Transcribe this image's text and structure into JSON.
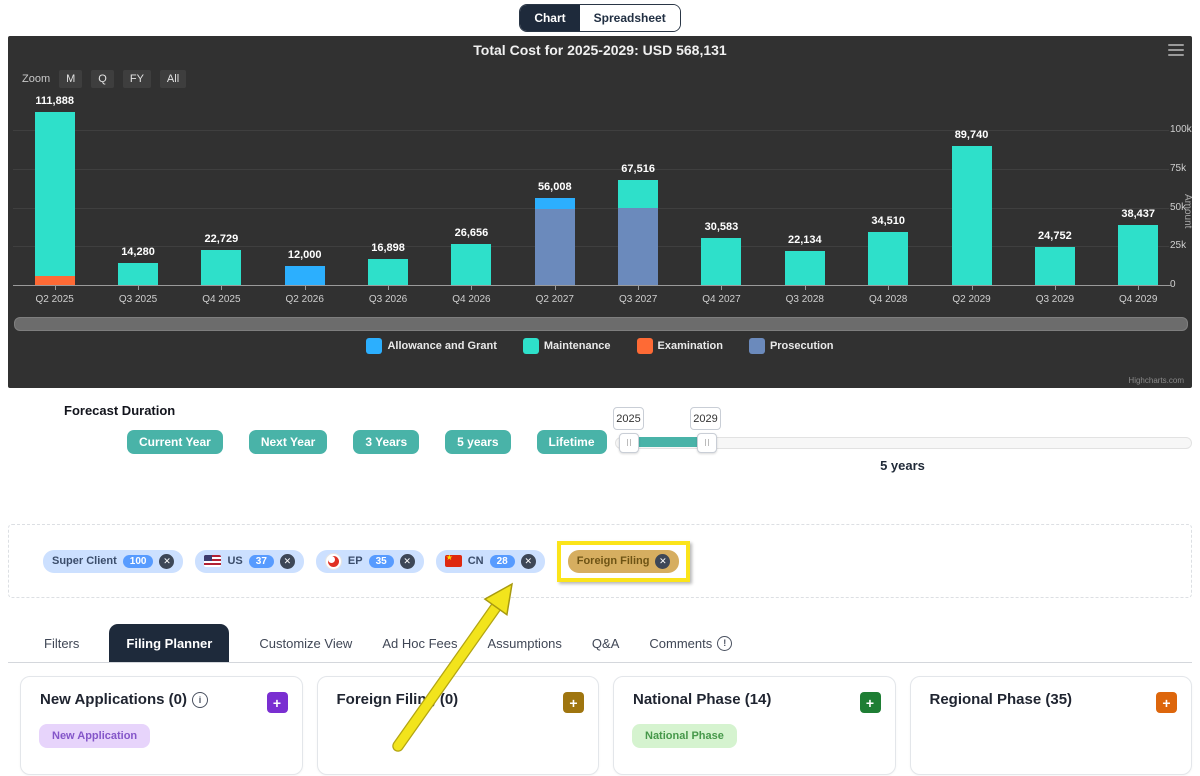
{
  "view_toggle": {
    "options": [
      "Chart",
      "Spreadsheet"
    ],
    "active": "Chart"
  },
  "chart": {
    "title": "Total Cost for 2025-2029: USD 568,131",
    "zoom_label": "Zoom",
    "zoom_buttons": [
      "M",
      "Q",
      "FY",
      "All"
    ],
    "y_axis_title": "Amount",
    "y_ticks": [
      "100k",
      "75k",
      "50k",
      "25k",
      "0"
    ],
    "credit": "Highcharts.com"
  },
  "chart_data": {
    "type": "bar",
    "stacked": true,
    "title": "Total Cost for 2025-2029: USD 568,131",
    "ylabel": "Amount",
    "ylim": [
      0,
      112000
    ],
    "grid": true,
    "legend_position": "bottom",
    "categories": [
      "Q2 2025",
      "Q3 2025",
      "Q4 2025",
      "Q2 2026",
      "Q3 2026",
      "Q4 2026",
      "Q2 2027",
      "Q3 2027",
      "Q4 2027",
      "Q3 2028",
      "Q4 2028",
      "Q2 2029",
      "Q3 2029",
      "Q4 2029"
    ],
    "totals": [
      111888,
      14280,
      22729,
      12000,
      16898,
      26656,
      56008,
      67516,
      30583,
      22134,
      34510,
      89740,
      24752,
      38437
    ],
    "stack_order": [
      "Examination",
      "Prosecution",
      "Maintenance",
      "Allowance and Grant"
    ],
    "series": [
      {
        "name": "Allowance and Grant",
        "color": "#2caffe",
        "values": [
          0,
          0,
          0,
          12000,
          0,
          0,
          7000,
          0,
          0,
          0,
          0,
          0,
          0,
          0
        ]
      },
      {
        "name": "Maintenance",
        "color": "#2ee0ca",
        "values": [
          105888,
          14280,
          22729,
          0,
          16898,
          26656,
          0,
          18000,
          30583,
          22134,
          34510,
          89740,
          24752,
          38437
        ]
      },
      {
        "name": "Examination",
        "color": "#fe6a35",
        "values": [
          6000,
          0,
          0,
          0,
          0,
          0,
          0,
          0,
          0,
          0,
          0,
          0,
          0,
          0
        ]
      },
      {
        "name": "Prosecution",
        "color": "#6b8abc",
        "values": [
          0,
          0,
          0,
          0,
          0,
          0,
          49008,
          49516,
          0,
          0,
          0,
          0,
          0,
          0
        ]
      }
    ]
  },
  "forecast": {
    "heading": "Forecast Duration",
    "buttons": [
      "Current Year",
      "Next Year",
      "3 Years",
      "5 years",
      "Lifetime"
    ],
    "slider": {
      "min_label": "2025",
      "max_label": "2029",
      "summary": "5 years"
    }
  },
  "filters": {
    "chips": [
      {
        "label": "Super Client",
        "count": "100",
        "flag": null,
        "highlighted": false
      },
      {
        "label": "US",
        "count": "37",
        "flag": "us",
        "highlighted": false
      },
      {
        "label": "EP",
        "count": "35",
        "flag": "ep",
        "highlighted": false
      },
      {
        "label": "CN",
        "count": "28",
        "flag": "cn",
        "highlighted": false
      },
      {
        "label": "Foreign Filing",
        "count": null,
        "flag": null,
        "highlighted": true
      }
    ]
  },
  "tabs": [
    {
      "label": "Filters",
      "active": false,
      "info_icon": false
    },
    {
      "label": "Filing Planner",
      "active": true,
      "info_icon": false
    },
    {
      "label": "Customize View",
      "active": false,
      "info_icon": false
    },
    {
      "label": "Ad Hoc Fees",
      "active": false,
      "info_icon": false
    },
    {
      "label": "Assumptions",
      "active": false,
      "info_icon": false
    },
    {
      "label": "Q&A",
      "active": false,
      "info_icon": false
    },
    {
      "label": "Comments",
      "active": false,
      "info_icon": true
    }
  ],
  "cards": [
    {
      "title": "New Applications",
      "count": "0",
      "info_icon": true,
      "plus_color": "#7a2fd1",
      "pill": {
        "label": "New Application",
        "bg": "#e7d4fb",
        "color": "#8456c9"
      }
    },
    {
      "title": "Foreign Filing",
      "count": "0",
      "info_icon": false,
      "plus_color": "#9f750f",
      "pill": null
    },
    {
      "title": "National Phase",
      "count": "14",
      "info_icon": false,
      "plus_color": "#1e7e34",
      "pill": {
        "label": "National Phase",
        "bg": "#d5f3cf",
        "color": "#46984a"
      }
    },
    {
      "title": "Regional Phase",
      "count": "35",
      "info_icon": false,
      "plus_color": "#dd660c",
      "pill": null
    }
  ],
  "icons": {
    "plus": "+",
    "close": "✕",
    "info": "i",
    "alert": "!"
  },
  "colors": {
    "accent_teal": "#49b3a8",
    "dark_navy": "#1e2a3b",
    "chart_background": "#313131",
    "chip_blue": "#cce0ff",
    "chip_badge_blue": "#579bff",
    "highlight_yellow": "#fbe41a"
  }
}
